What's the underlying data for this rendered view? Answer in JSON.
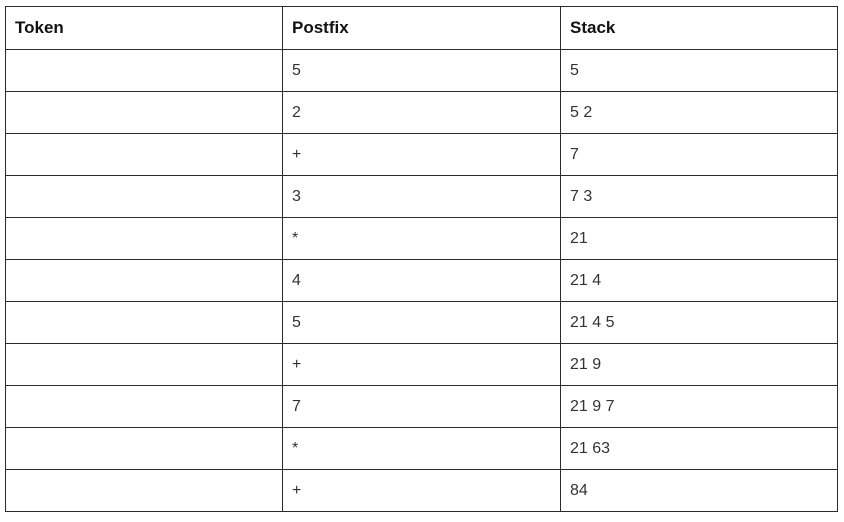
{
  "table": {
    "headers": [
      "Token",
      "Postfix",
      "Stack"
    ],
    "rows": [
      [
        "",
        "5",
        "5"
      ],
      [
        "",
        "2",
        "5 2"
      ],
      [
        "",
        "+",
        "7"
      ],
      [
        "",
        "3",
        "7 3"
      ],
      [
        "",
        "*",
        "21"
      ],
      [
        "",
        "4",
        "21 4"
      ],
      [
        "",
        "5",
        "21 4 5"
      ],
      [
        "",
        "+",
        "21 9"
      ],
      [
        "",
        "7",
        "21 9 7"
      ],
      [
        "",
        "*",
        "21 63"
      ],
      [
        "",
        "+",
        "84"
      ]
    ]
  }
}
